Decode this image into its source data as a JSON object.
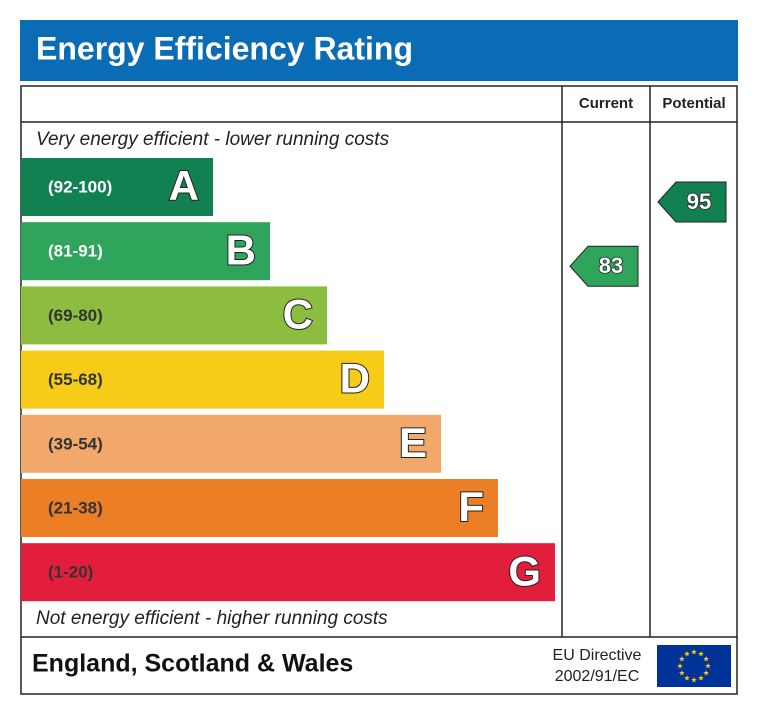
{
  "header": {
    "title": "Energy Efficiency Rating"
  },
  "columns": {
    "current": "Current",
    "potential": "Potential"
  },
  "top_note": "Very energy efficient - lower running costs",
  "bands": [
    {
      "range": "(92-100)",
      "letter": "A",
      "color": "#128152",
      "text_color": "#ffffff"
    },
    {
      "range": "(81-91)",
      "letter": "B",
      "color": "#2ea55a",
      "text_color": "#ffffff"
    },
    {
      "range": "(69-80)",
      "letter": "C",
      "color": "#8dbd40",
      "text_color": "#333333"
    },
    {
      "range": "(55-68)",
      "letter": "D",
      "color": "#f6cc18",
      "text_color": "#333333"
    },
    {
      "range": "(39-54)",
      "letter": "E",
      "color": "#f1a86a",
      "text_color": "#333333"
    },
    {
      "range": "(21-38)",
      "letter": "F",
      "color": "#ec7f26",
      "text_color": "#333333"
    },
    {
      "range": "(1-20)",
      "letter": "G",
      "color": "#e31d3c",
      "text_color": "#333333"
    }
  ],
  "bottom_note": "Not energy efficient - higher running costs",
  "ratings": {
    "current": 83,
    "potential": 95
  },
  "footer": {
    "region": "England, Scotland & Wales",
    "directive_line1": "EU Directive",
    "directive_line2": "2002/91/EC"
  }
}
